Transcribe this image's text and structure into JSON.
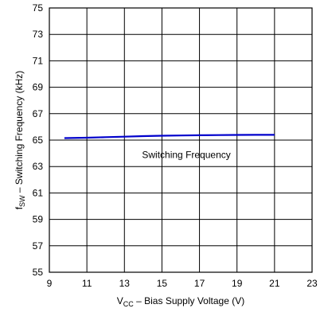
{
  "chart_data": {
    "type": "line",
    "title": "",
    "xlabel": {
      "main": "V",
      "sub": "CC",
      "rest": " – Bias Supply Voltage (V)"
    },
    "ylabel": {
      "main": "f",
      "sub": "SW",
      "rest": " – Switching Frequency (kHz)"
    },
    "xlim": [
      9,
      23
    ],
    "ylim": [
      55,
      75
    ],
    "xticks": [
      9,
      11,
      13,
      15,
      17,
      19,
      21,
      23
    ],
    "yticks": [
      55,
      57,
      59,
      61,
      63,
      65,
      67,
      69,
      71,
      73,
      75
    ],
    "grid": true,
    "series_color": "#0000cc",
    "annotation": "Switching Frequency",
    "series": [
      {
        "x": [
          9.8,
          11,
          12,
          13,
          14,
          15,
          16,
          17,
          18,
          19,
          20,
          21
        ],
        "y": [
          65.15,
          65.18,
          65.22,
          65.26,
          65.3,
          65.33,
          65.35,
          65.37,
          65.38,
          65.39,
          65.4,
          65.4
        ]
      }
    ]
  }
}
